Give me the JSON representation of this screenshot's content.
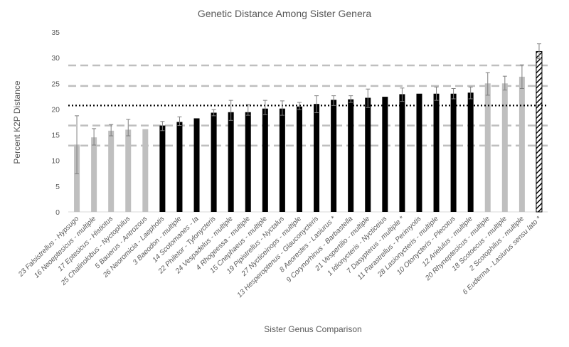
{
  "chart_data": {
    "type": "bar",
    "title": "Genetic Distance Among Sister Genera",
    "xlabel": "Sister Genus Comparison",
    "ylabel": "Percent K2P Distance",
    "ylim": [
      0,
      35
    ],
    "yticks": [
      0,
      5,
      10,
      15,
      20,
      25,
      30,
      35
    ],
    "grid": false,
    "legend": "none",
    "categories": [
      "23 Falsistrellus - Hypsugo",
      "16 Neoeptesicus - multiple",
      "17 Eptesicus - Histiotus",
      "25 Chalinolobus - Nyctophilus",
      "5 Bauerus - Antrozous",
      "26 Neoromicia - Laephotis",
      "3 Baeodon - multiple",
      "14 Scotomanes - Ia",
      "22 Philetor - Tylonycteris",
      "24 Vespadelus - multiple",
      "4 Rhogeessa - multiple",
      "15 Cnephaeus - multiple",
      "19 Pipistrellus - Nyctalus",
      "27 Nycticeinops - multiple",
      "13 Hesperoptenus - Glauconycteris",
      "8 Aeorestes - Lasiurus *",
      "9 Corynorhinus - Barbastella",
      "21 Vespertilio - multiple",
      "1 Idionycteris - Nycticeius",
      "7 Dasypterus - multiple *",
      "11 Parastrellus - Perimyotis",
      "28 Lasionycteris - multiple",
      "10 Otonycteris - Plecotus",
      "12 Arielulus - multiple",
      "20 Rhyneptesicus - multiple",
      "18 Scotoecus - multiple",
      "2 Scotophilus - multiple",
      "6 Euderma - Lasiurus sensu lato *"
    ],
    "values": [
      13.1,
      14.5,
      15.8,
      16.0,
      16.1,
      16.8,
      17.5,
      18.2,
      19.3,
      19.4,
      19.4,
      20.1,
      20.1,
      20.5,
      21.0,
      21.8,
      21.9,
      22.2,
      22.4,
      22.9,
      23.0,
      23.0,
      23.0,
      23.2,
      25.0,
      25.0,
      26.3,
      31.2
    ],
    "error_low": [
      7.4,
      13.0,
      14.8,
      14.8,
      null,
      15.8,
      16.8,
      null,
      18.7,
      17.8,
      18.8,
      18.9,
      18.8,
      19.9,
      19.3,
      20.7,
      21.3,
      20.3,
      null,
      21.5,
      null,
      21.7,
      22.0,
      22.0,
      22.7,
      23.7,
      24.0,
      29.8
    ],
    "error_high": [
      18.7,
      16.2,
      17.0,
      18.0,
      null,
      17.6,
      18.5,
      null,
      19.9,
      21.7,
      20.9,
      21.7,
      21.6,
      21.3,
      22.6,
      22.6,
      22.6,
      23.9,
      null,
      24.1,
      null,
      24.3,
      24.0,
      24.3,
      27.1,
      26.4,
      28.6,
      32.7
    ],
    "bar_styles": [
      "gray",
      "gray",
      "gray",
      "gray",
      "gray",
      "black",
      "black",
      "black",
      "black",
      "black",
      "black",
      "black",
      "black",
      "black",
      "black",
      "black",
      "black",
      "black",
      "black",
      "black",
      "black",
      "black",
      "black",
      "black",
      "gray",
      "gray",
      "gray",
      "hatched"
    ],
    "reference_lines": {
      "mean_dotted": 20.7,
      "dashed": [
        12.9,
        16.8,
        24.5,
        28.5
      ]
    },
    "colors": {
      "gray": "#bfbfbf",
      "black": "#000000",
      "hatch": "#000000",
      "dashed_line": "#bfbfbf",
      "dotted_line": "#000000",
      "axis": "#d9d9d9",
      "text": "#595959"
    }
  }
}
